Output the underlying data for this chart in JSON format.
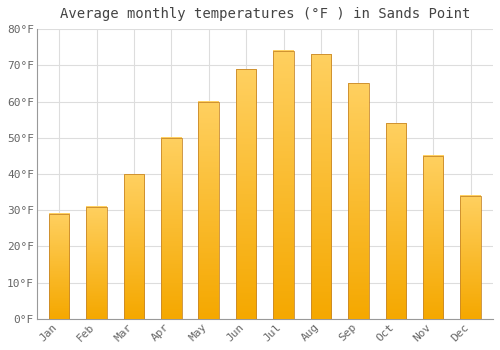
{
  "title": "Average monthly temperatures (°F ) in Sands Point",
  "months": [
    "Jan",
    "Feb",
    "Mar",
    "Apr",
    "May",
    "Jun",
    "Jul",
    "Aug",
    "Sep",
    "Oct",
    "Nov",
    "Dec"
  ],
  "values": [
    29,
    31,
    40,
    50,
    60,
    69,
    74,
    73,
    65,
    54,
    45,
    34
  ],
  "bar_color_bottom": "#F5A800",
  "bar_color_top": "#FFD060",
  "bar_edge_color": "#C8882A",
  "ylim": [
    0,
    80
  ],
  "yticks": [
    0,
    10,
    20,
    30,
    40,
    50,
    60,
    70,
    80
  ],
  "ytick_labels": [
    "0°F",
    "10°F",
    "20°F",
    "30°F",
    "40°F",
    "50°F",
    "60°F",
    "70°F",
    "80°F"
  ],
  "background_color": "#FFFFFF",
  "grid_color": "#DDDDDD",
  "title_fontsize": 10,
  "tick_fontsize": 8,
  "title_color": "#444444",
  "tick_color": "#666666",
  "bar_width": 0.55
}
